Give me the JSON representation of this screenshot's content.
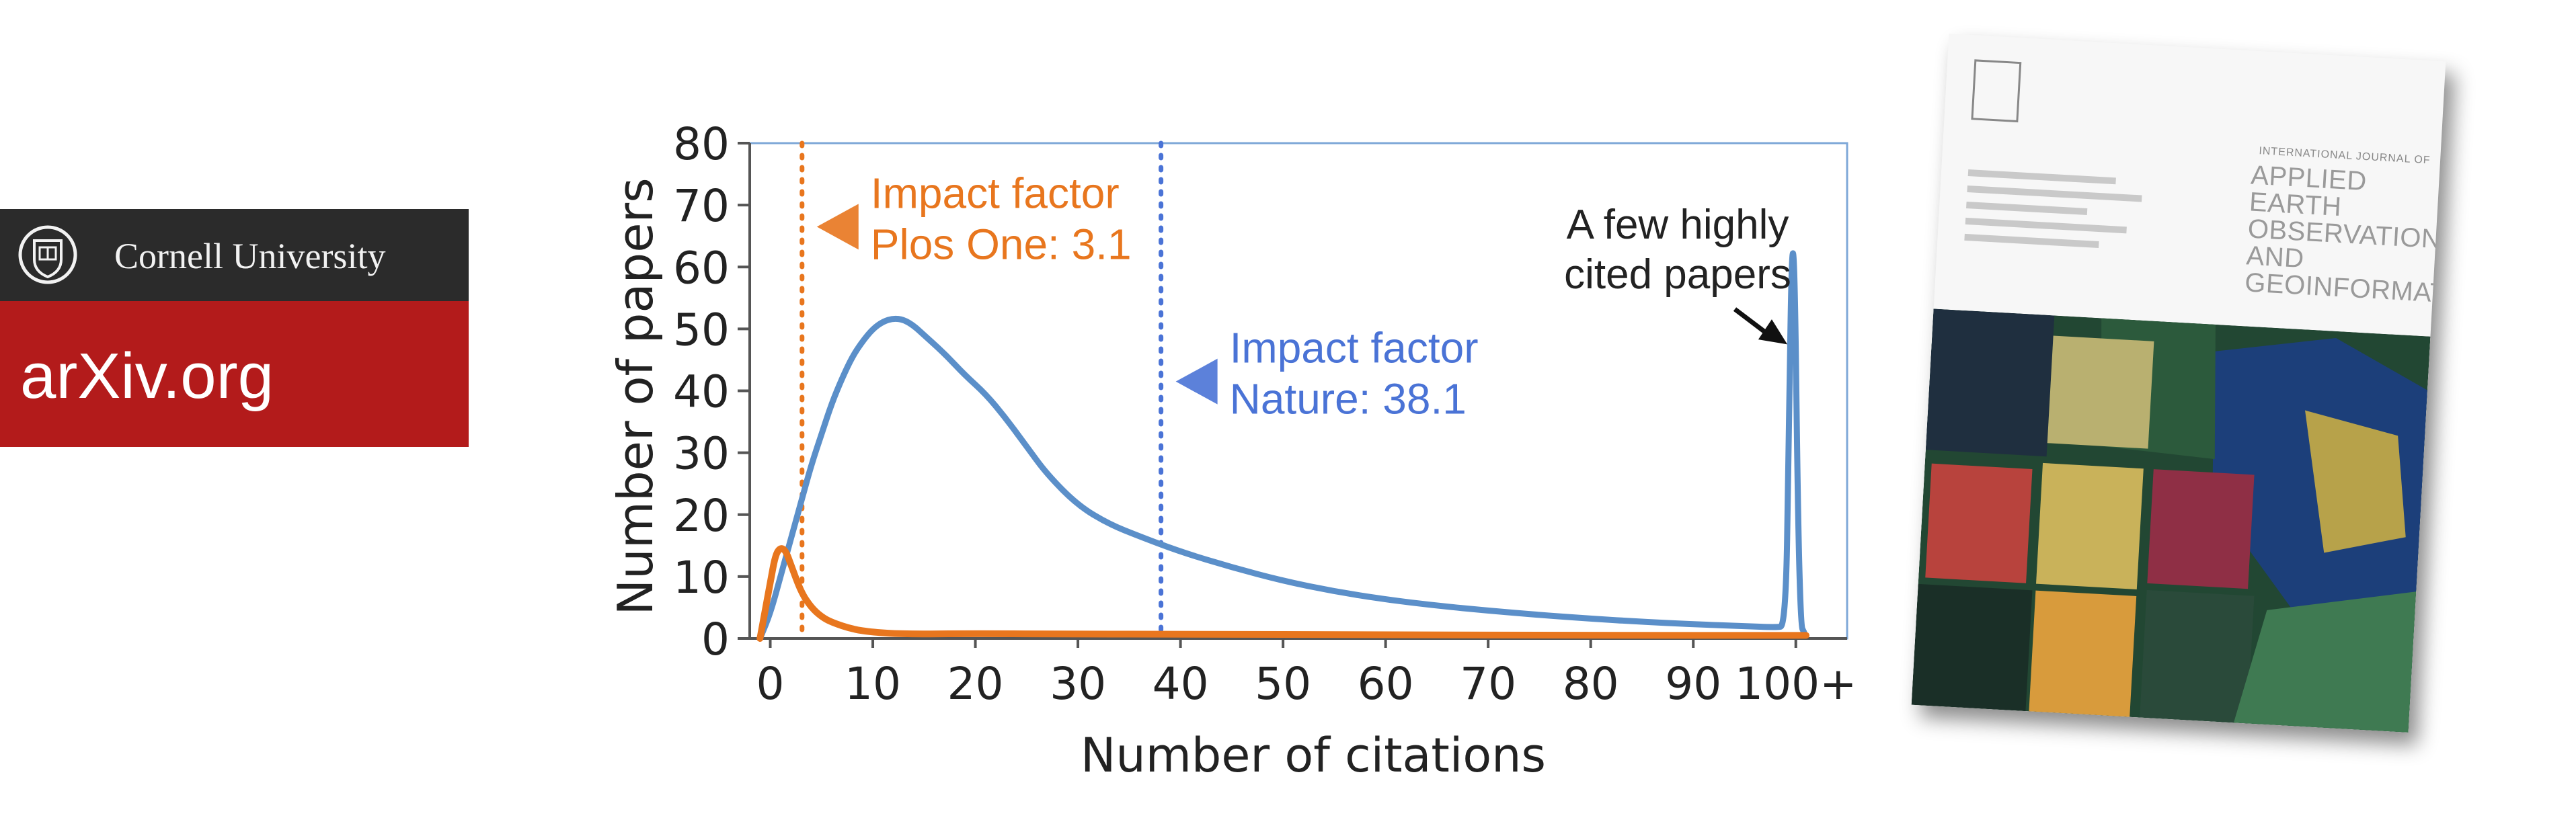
{
  "logo": {
    "institution": "Cornell University",
    "site": "arXiv.org",
    "colors": {
      "band": "#2b2b2b",
      "red": "#b31b1b"
    },
    "seal_icon": "cornell-seal-icon"
  },
  "chart_data": {
    "type": "line",
    "xlabel": "Number of citations",
    "ylabel": "Number of papers",
    "xlim": [
      -2,
      105
    ],
    "ylim": [
      0,
      80
    ],
    "x_ticks": [
      "0",
      "10",
      "20",
      "30",
      "40",
      "50",
      "60",
      "70",
      "80",
      "90",
      "100+"
    ],
    "x_tick_values": [
      0,
      10,
      20,
      30,
      40,
      50,
      60,
      70,
      80,
      90,
      100
    ],
    "y_ticks": [
      "0",
      "10",
      "20",
      "30",
      "40",
      "50",
      "60",
      "70",
      "80"
    ],
    "y_tick_values": [
      0,
      10,
      20,
      30,
      40,
      50,
      60,
      70,
      80
    ],
    "grid": false,
    "legend": "none",
    "series": [
      {
        "color": "#5b8fc9",
        "x": [
          -1,
          0,
          1,
          2,
          3,
          4,
          5,
          6,
          7,
          8,
          9,
          10,
          11,
          12,
          13,
          14,
          15,
          17,
          19,
          21,
          23,
          25,
          27,
          30,
          33,
          36,
          40,
          45,
          50,
          55,
          60,
          65,
          70,
          75,
          80,
          85,
          90,
          95,
          98,
          99,
          99.3,
          99.6,
          99.9,
          100.2,
          100.5,
          100.8
        ],
        "y": [
          0,
          4,
          10,
          16,
          22,
          28,
          33,
          38,
          42,
          45.5,
          48,
          50,
          51.2,
          51.7,
          51.5,
          50.5,
          49,
          46,
          42.5,
          39.5,
          35.5,
          31,
          26.5,
          21.5,
          18.5,
          16.5,
          14,
          11.5,
          9.3,
          7.6,
          6.3,
          5.3,
          4.5,
          3.8,
          3.2,
          2.7,
          2.3,
          2,
          1.8,
          2,
          30,
          64,
          60,
          20,
          2,
          1
        ]
      },
      {
        "color": "#e8761e",
        "x": [
          -1,
          0,
          0.5,
          1,
          1.5,
          2,
          3,
          4,
          5,
          6,
          8,
          10,
          13,
          20,
          30,
          40,
          60,
          80,
          100,
          101
        ],
        "y": [
          0,
          9,
          13.5,
          14.7,
          14.2,
          12,
          7.5,
          5,
          3.5,
          2.6,
          1.5,
          1,
          0.7,
          0.8,
          0.7,
          0.7,
          0.6,
          0.5,
          0.5,
          0.5
        ]
      }
    ],
    "markers": [
      {
        "x": 3.1,
        "color": "#e8761e",
        "label_lines": [
          "Impact factor",
          "Plos One: 3.1"
        ],
        "arrow_y": 66.5
      },
      {
        "x": 38.1,
        "color": "#4a73d6",
        "label_lines": [
          "Impact factor",
          "Nature: 38.1"
        ],
        "arrow_y": 41.5
      }
    ],
    "annotation": {
      "lines": [
        "A few highly",
        "cited papers"
      ],
      "target": [
        99.7,
        47.5
      ]
    },
    "colors": {
      "frame": "#7fa8d8",
      "axis": "#555555",
      "text": "#222222"
    }
  },
  "cover": {
    "journal_small": "INTERNATIONAL JOURNAL OF",
    "journal_title": [
      "APPLIED EARTH",
      "OBSERVATION AND",
      "GEOINFORMATION"
    ]
  }
}
